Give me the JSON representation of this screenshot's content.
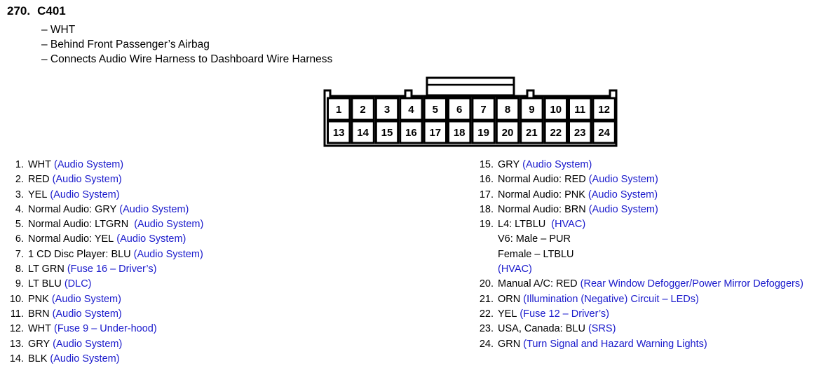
{
  "header": {
    "number": "270.",
    "connector": "C401"
  },
  "description": [
    "– WHT",
    "– Behind Front Passenger’s Airbag",
    "– Connects Audio Wire Harness to Dashboard Wire Harness"
  ],
  "connector": {
    "top_row": [
      "1",
      "2",
      "3",
      "4",
      "5",
      "6",
      "7",
      "8",
      "9",
      "10",
      "11",
      "12"
    ],
    "bottom_row": [
      "13",
      "14",
      "15",
      "16",
      "17",
      "18",
      "19",
      "20",
      "21",
      "22",
      "23",
      "24"
    ]
  },
  "pins_left": [
    {
      "num": "1.",
      "text": "WHT",
      "link": "(Audio System)"
    },
    {
      "num": "2.",
      "text": "RED",
      "link": "(Audio System)"
    },
    {
      "num": "3.",
      "text": "YEL",
      "link": "(Audio System)"
    },
    {
      "num": "4.",
      "text": "Normal Audio: GRY",
      "link": "(Audio System)"
    },
    {
      "num": "5.",
      "text": "Normal Audio: LTGRN ",
      "link": "(Audio System)"
    },
    {
      "num": "6.",
      "text": "Normal Audio: YEL",
      "link": "(Audio System)"
    },
    {
      "num": "7.",
      "text": "1 CD Disc Player: BLU",
      "link": "(Audio System)"
    },
    {
      "num": "8.",
      "text": "LT GRN",
      "link": "(Fuse 16 – Driver’s)"
    },
    {
      "num": "9.",
      "text": "LT BLU",
      "link": "(DLC)"
    },
    {
      "num": "10.",
      "text": "PNK",
      "link": "(Audio System)"
    },
    {
      "num": "11.",
      "text": "BRN",
      "link": "(Audio System)"
    },
    {
      "num": "12.",
      "text": "WHT",
      "link": "(Fuse 9 – Under-hood)"
    },
    {
      "num": "13.",
      "text": "GRY",
      "link": "(Audio System)"
    },
    {
      "num": "14.",
      "text": "BLK",
      "link": "(Audio System)"
    }
  ],
  "pins_right": [
    {
      "num": "15.",
      "text": "GRY",
      "link": "(Audio System)"
    },
    {
      "num": "16.",
      "text": "Normal Audio: RED",
      "link": "(Audio System)"
    },
    {
      "num": "17.",
      "text": "Normal Audio: PNK",
      "link": "(Audio System)"
    },
    {
      "num": "18.",
      "text": "Normal Audio: BRN",
      "link": "(Audio System)"
    },
    {
      "num": "19.",
      "text": "L4: LTBLU ",
      "link": "(HVAC)",
      "extra": [
        "V6: Male – PUR",
        "Female – LTBLU"
      ],
      "extra_link": "(HVAC)"
    },
    {
      "num": "20.",
      "text": "Manual A/C: RED",
      "link": "(Rear Window Defogger/Power Mirror Defoggers)"
    },
    {
      "num": "21.",
      "text": "ORN",
      "link": "(Illumination (Negative) Circuit – LEDs)"
    },
    {
      "num": "22.",
      "text": "YEL",
      "link": "(Fuse 12 – Driver’s)"
    },
    {
      "num": "23.",
      "text": "USA, Canada: BLU",
      "link": "(SRS)"
    },
    {
      "num": "24.",
      "text": "GRN",
      "link": "(Turn Signal and Hazard Warning Lights)"
    }
  ],
  "colors": {
    "link": "#1a1acc",
    "text": "#000000"
  }
}
